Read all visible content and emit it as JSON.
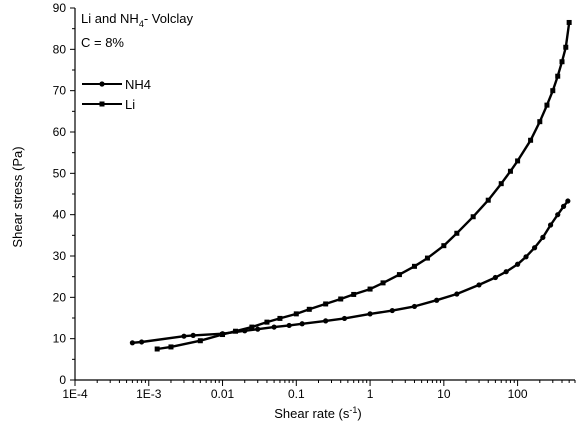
{
  "chart_data": {
    "type": "line",
    "annotation": {
      "line1_prefix": "Li and NH",
      "line1_sub": "4",
      "line1_suffix": "- Volclay",
      "line2": "C = 8%"
    },
    "xlabel": {
      "text": "Shear rate (s",
      "sup": "-1",
      "close": ")"
    },
    "ylabel": "Shear stress (Pa)",
    "xscale": "log",
    "xlim": [
      0.0001,
      600
    ],
    "ylim": [
      0,
      90
    ],
    "x_ticks": [
      {
        "value": 0.0001,
        "label": "1E-4"
      },
      {
        "value": 0.001,
        "label": "1E-3"
      },
      {
        "value": 0.01,
        "label": "0.01"
      },
      {
        "value": 0.1,
        "label": "0.1"
      },
      {
        "value": 1,
        "label": "1"
      },
      {
        "value": 10,
        "label": "10"
      },
      {
        "value": 100,
        "label": "100"
      }
    ],
    "y_ticks": [
      0,
      10,
      20,
      30,
      40,
      50,
      60,
      70,
      80,
      90
    ],
    "legend_position": "top-left",
    "series": [
      {
        "name": "NH4",
        "marker": "circle",
        "x": [
          0.0006,
          0.0008,
          0.003,
          0.004,
          0.01,
          0.02,
          0.03,
          0.05,
          0.08,
          0.12,
          0.25,
          0.45,
          1.0,
          2.0,
          4.0,
          8.0,
          15,
          30,
          50,
          70,
          100,
          130,
          170,
          220,
          280,
          350,
          420,
          480
        ],
        "y": [
          9,
          9.2,
          10.6,
          10.8,
          11.2,
          11.9,
          12.3,
          12.8,
          13.2,
          13.6,
          14.3,
          14.9,
          16,
          16.8,
          17.8,
          19.3,
          20.8,
          23,
          24.8,
          26.2,
          28,
          29.8,
          32,
          34.5,
          37.5,
          40,
          42,
          43.3
        ]
      },
      {
        "name": "Li",
        "marker": "square",
        "x": [
          0.0013,
          0.002,
          0.005,
          0.01,
          0.015,
          0.025,
          0.04,
          0.06,
          0.1,
          0.15,
          0.25,
          0.4,
          0.6,
          1.0,
          1.5,
          2.5,
          4,
          6,
          10,
          15,
          25,
          40,
          60,
          80,
          100,
          150,
          200,
          250,
          300,
          350,
          400,
          450,
          500
        ],
        "y": [
          7.5,
          8,
          9.5,
          11,
          11.8,
          12.8,
          14,
          14.9,
          16,
          17.1,
          18.4,
          19.6,
          20.7,
          22,
          23.5,
          25.5,
          27.5,
          29.5,
          32.5,
          35.5,
          39.5,
          43.5,
          47.5,
          50.5,
          53,
          58,
          62.5,
          66.5,
          70,
          73.5,
          77,
          80.5,
          86.5
        ]
      }
    ]
  }
}
